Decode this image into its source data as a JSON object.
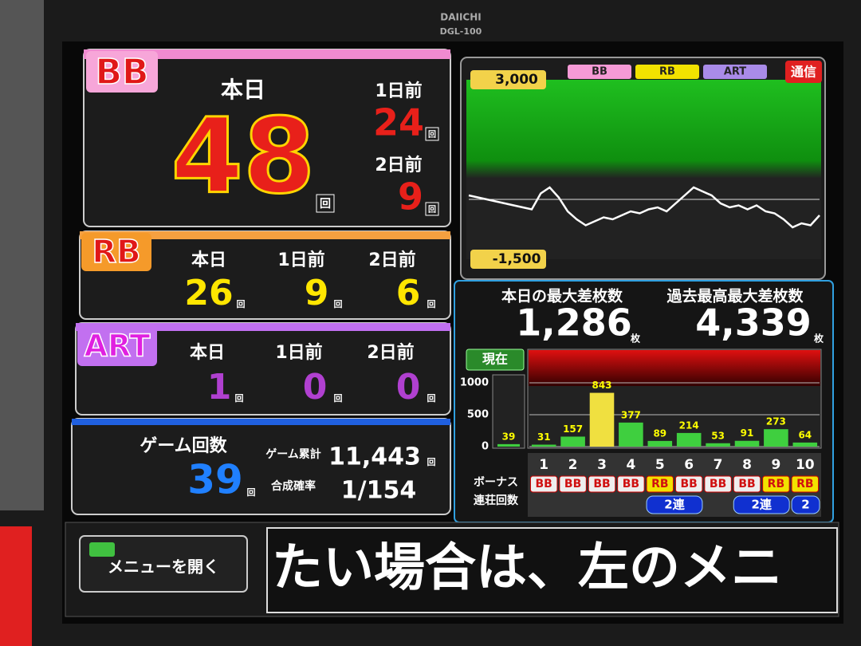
{
  "bezel": {
    "brand": "DAIICHI",
    "model": "DGL-100"
  },
  "units": {
    "times": "回",
    "coins": "枚"
  },
  "bb": {
    "label": "BB",
    "today_label": "本日",
    "today": 48,
    "prev1_label": "1日前",
    "prev1": 24,
    "prev2_label": "2日前",
    "prev2": 9
  },
  "rb": {
    "label": "RB",
    "today_label": "本日",
    "today": 26,
    "prev1_label": "1日前",
    "prev1": 9,
    "prev2_label": "2日前",
    "prev2": 6
  },
  "art": {
    "label": "ART",
    "today_label": "本日",
    "today": 1,
    "prev1_label": "1日前",
    "prev1": 0,
    "prev2_label": "2日前",
    "prev2": 0
  },
  "games": {
    "label": "ゲーム回数",
    "value": 39,
    "total_label": "ゲーム累計",
    "total": "11,443",
    "rate_label": "合成確率",
    "rate": "1/154"
  },
  "comm_button": "通信",
  "max_diff": {
    "today_label": "本日の最大差枚数",
    "today": "1,286",
    "record_label": "過去最高最大差枚数",
    "record": "4,339"
  },
  "menu_button": "メニューを開く",
  "ticker": "たい場合は、左のメニ",
  "chart_data": [
    {
      "type": "line",
      "color": "#ffffff",
      "values": [
        100,
        50,
        0,
        -50,
        -100,
        -150,
        -200,
        -250,
        150,
        300,
        50,
        -300,
        -500,
        -650,
        -550,
        -450,
        -500,
        -400,
        -300,
        -350,
        -250,
        -200,
        -300,
        -100,
        100,
        300,
        200,
        100,
        -100,
        -200,
        -150,
        -250,
        -150,
        -300,
        -350,
        -500,
        -700,
        -600,
        -650,
        -400
      ],
      "ylim": [
        -1500,
        3000
      ],
      "yticks": [
        {
          "value": 3000,
          "label": "3,000"
        },
        {
          "value": -1500,
          "label": "-1,500"
        }
      ],
      "markers": [
        {
          "name": "BB",
          "color": "#f59ad6"
        },
        {
          "name": "RB",
          "color": "#f2e200"
        },
        {
          "name": "ART",
          "color": "#a98be8"
        }
      ]
    },
    {
      "type": "bar",
      "current_label": "現在",
      "current_value": 39,
      "categories": [
        "1",
        "2",
        "3",
        "4",
        "5",
        "6",
        "7",
        "8",
        "9",
        "10"
      ],
      "values": [
        31,
        157,
        843,
        377,
        89,
        214,
        53,
        91,
        273,
        64
      ],
      "colors": [
        "#3fcf3f",
        "#3fcf3f",
        "#f0e040",
        "#3fcf3f",
        "#3fcf3f",
        "#3fcf3f",
        "#3fcf3f",
        "#3fcf3f",
        "#3fcf3f",
        "#3fcf3f"
      ],
      "bonus_types": [
        "BB",
        "BB",
        "BB",
        "BB",
        "RB",
        "BB",
        "BB",
        "BB",
        "RB",
        "RB"
      ],
      "chains": [
        null,
        null,
        null,
        null,
        "2連",
        null,
        null,
        "2連",
        null,
        "2"
      ],
      "row_labels": [
        "ボーナス",
        "連荘回数"
      ],
      "ylim": [
        0,
        1500
      ],
      "yticks": [
        0,
        500,
        1000
      ]
    }
  ]
}
